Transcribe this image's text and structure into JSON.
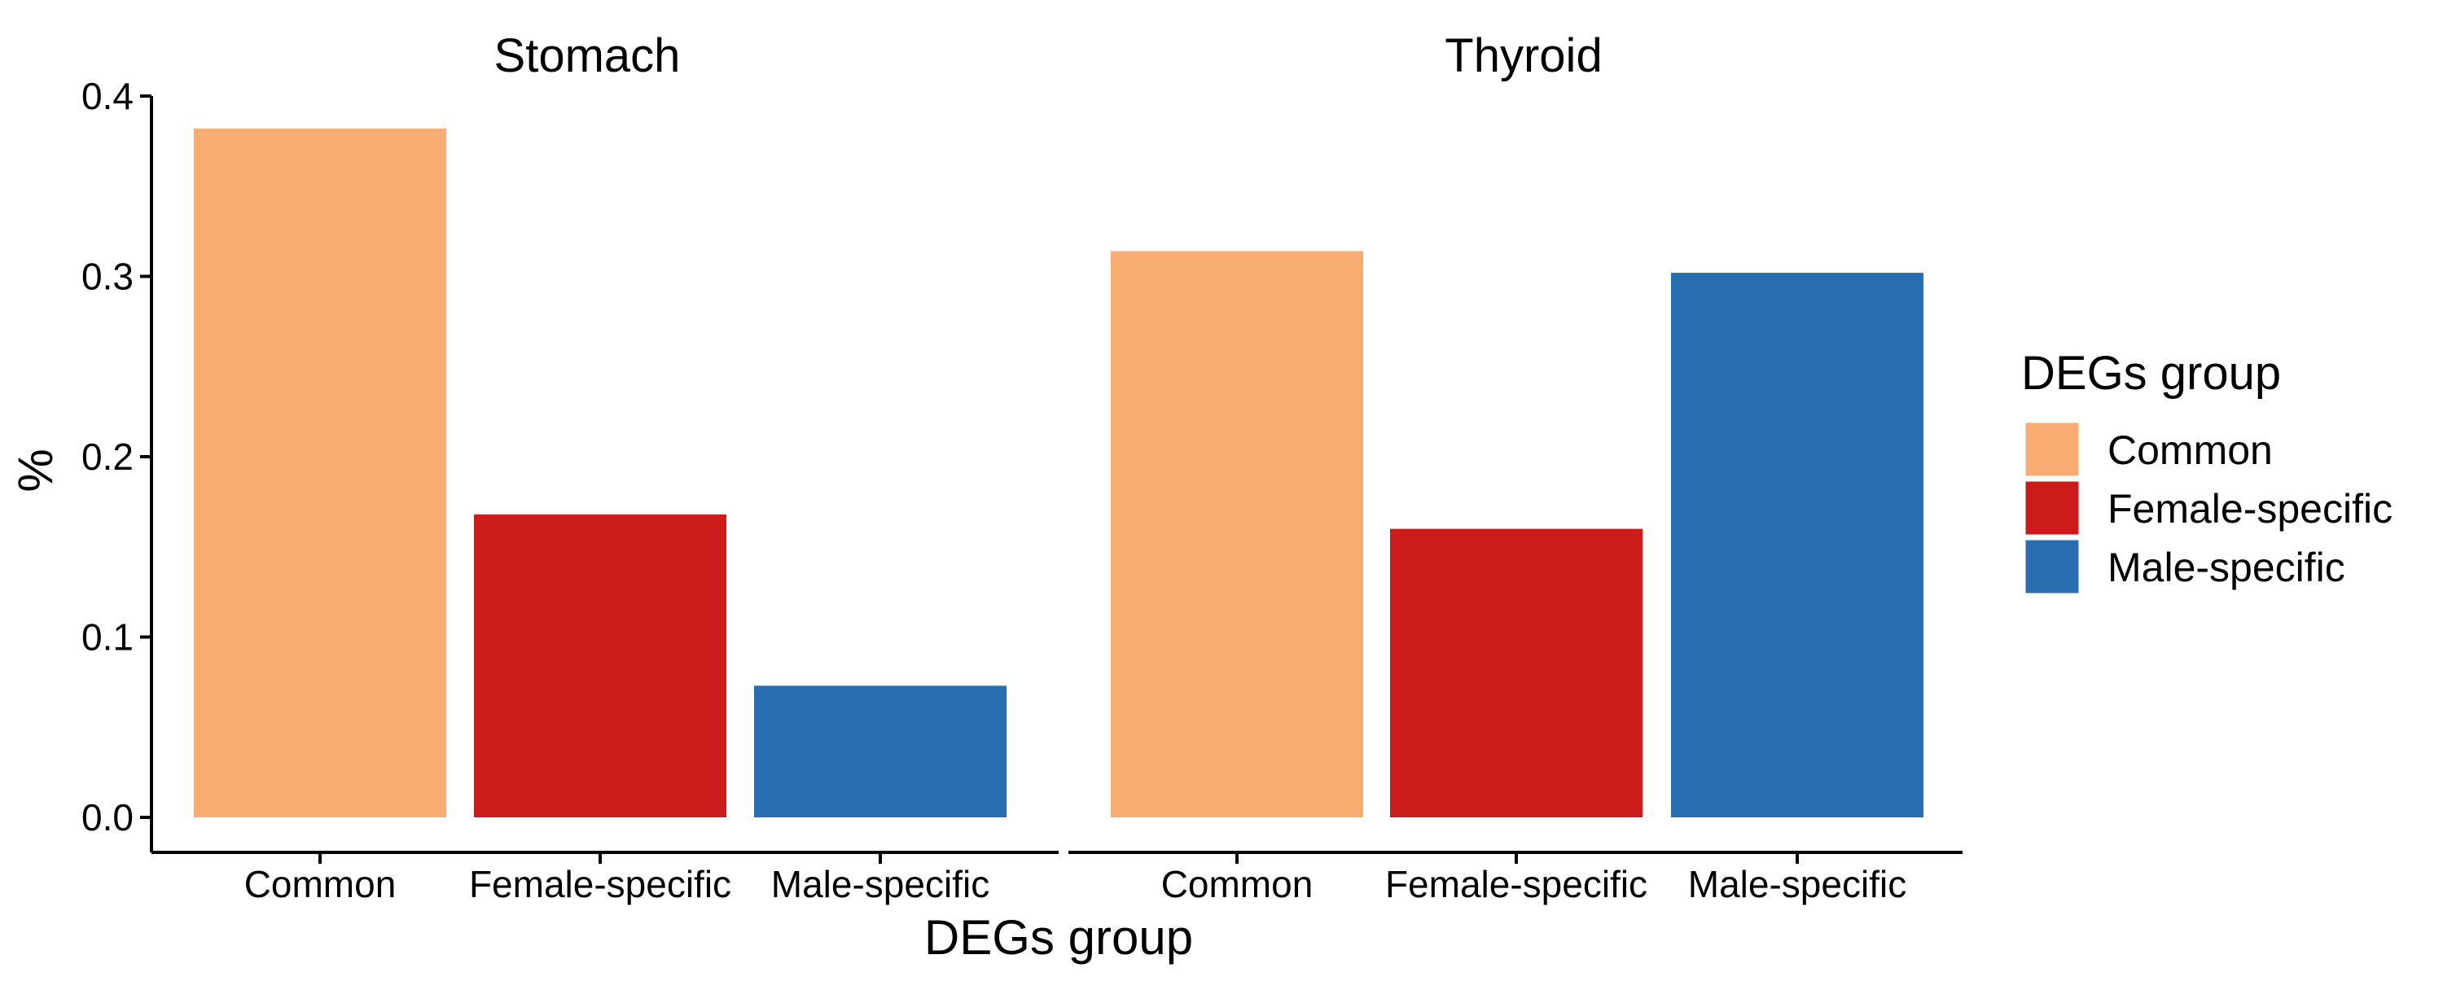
{
  "chart_data": {
    "type": "bar",
    "xlabel": "DEGs group",
    "ylabel": "%",
    "ylim": [
      0,
      0.4
    ],
    "yticks": [
      "0.0",
      "0.1",
      "0.2",
      "0.3",
      "0.4"
    ],
    "grid": false,
    "legend": {
      "title": "DEGs group",
      "placement": "right",
      "entries": [
        {
          "label": "Common",
          "color": "#F9AC72"
        },
        {
          "label": "Female-specific",
          "color": "#CB1B1B"
        },
        {
          "label": "Male-specific",
          "color": "#276DAF"
        }
      ]
    },
    "categories": [
      "Common",
      "Female-specific",
      "Male-specific"
    ],
    "facets": [
      {
        "title": "Stomach",
        "values": [
          0.382,
          0.168,
          0.073
        ]
      },
      {
        "title": "Thyroid",
        "values": [
          0.314,
          0.16,
          0.302
        ]
      }
    ]
  }
}
